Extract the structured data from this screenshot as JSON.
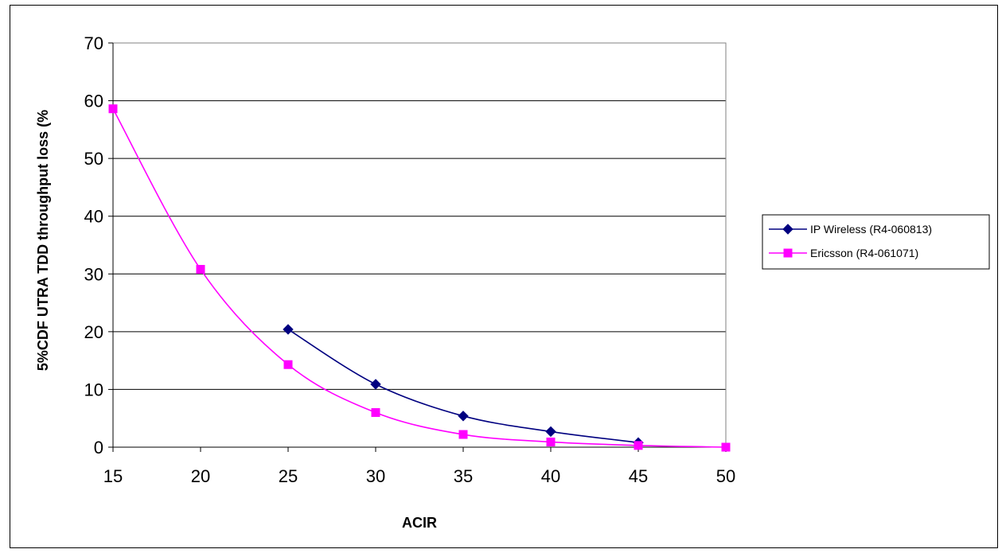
{
  "chart_data": {
    "type": "line",
    "title": "",
    "xlabel": "ACIR",
    "ylabel": "5%CDF UTRA TDD throughput loss (%",
    "xlim": [
      15,
      50
    ],
    "ylim": [
      0,
      70
    ],
    "xticks": [
      15,
      20,
      25,
      30,
      35,
      40,
      45,
      50
    ],
    "yticks": [
      0,
      10,
      20,
      30,
      40,
      50,
      60,
      70
    ],
    "grid": "horizontal",
    "legend_position": "right",
    "series": [
      {
        "name": "IP Wireless (R4-060813)",
        "color": "#000080",
        "marker": "diamond",
        "x": [
          25,
          30,
          35,
          40,
          45
        ],
        "y": [
          20.4,
          10.9,
          5.4,
          2.7,
          0.8
        ]
      },
      {
        "name": "Ericsson (R4-061071)",
        "color": "#FF00FF",
        "marker": "square",
        "x": [
          15,
          20,
          25,
          30,
          35,
          40,
          45,
          50
        ],
        "y": [
          58.6,
          30.8,
          14.3,
          6.0,
          2.2,
          0.9,
          0.3,
          0.0
        ]
      }
    ]
  }
}
